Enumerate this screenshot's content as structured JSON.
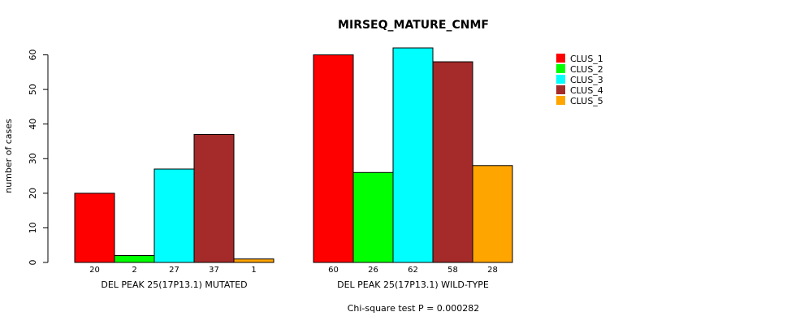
{
  "chart_data": {
    "type": "bar",
    "title": "MIRSEQ_MATURE_CNMF",
    "ylabel": "number of cases",
    "ylim": [
      0,
      62
    ],
    "yticks": [
      0,
      10,
      20,
      30,
      40,
      50,
      60
    ],
    "groups": [
      {
        "label": "DEL PEAK 25(17P13.1) MUTATED",
        "values": [
          20,
          2,
          27,
          37,
          1
        ],
        "value_labels": [
          "20",
          "2",
          "27",
          "37",
          "1"
        ]
      },
      {
        "label": "DEL PEAK 25(17P13.1) WILD-TYPE",
        "values": [
          60,
          26,
          62,
          58,
          28
        ],
        "value_labels": [
          "60",
          "26",
          "62",
          "58",
          "28"
        ]
      }
    ],
    "series": [
      {
        "name": "CLUS_1",
        "color": "#ff0000"
      },
      {
        "name": "CLUS_2",
        "color": "#00ff00"
      },
      {
        "name": "CLUS_3",
        "color": "#00ffff"
      },
      {
        "name": "CLUS_4",
        "color": "#a52a2a"
      },
      {
        "name": "CLUS_5",
        "color": "#ffa500"
      }
    ],
    "legend_position": "top-right",
    "footnote": "Chi-square test P = 0.000282"
  }
}
